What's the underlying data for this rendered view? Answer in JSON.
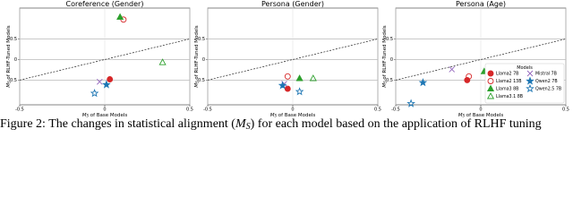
{
  "chart_data": [
    {
      "type": "scatter",
      "title": "Coreference (Gender)",
      "xlabel": {
        "symbol": "M",
        "subscript": "S",
        "text": " of Base Models"
      },
      "ylabel": {
        "symbol": "M",
        "subscript": "S",
        "text": " of RLHF-Tuned Models"
      },
      "xlim": [
        -0.5,
        0.5
      ],
      "ylim": [
        -1.1,
        1.25
      ],
      "xticks": [
        -0.5,
        0.0,
        0.5
      ],
      "yticks": [
        -0.5,
        0.0,
        0.5
      ],
      "grid": true,
      "series": [
        {
          "color": "#d62728",
          "marker": "circle",
          "filled": true,
          "x": [
            0.03
          ],
          "values": [
            -0.48
          ]
        },
        {
          "color": "#d62728",
          "marker": "circle",
          "filled": false,
          "x": [
            0.11
          ],
          "values": [
            0.97
          ]
        },
        {
          "color": "#2ca02c",
          "marker": "triangle",
          "filled": true,
          "x": [
            0.09
          ],
          "values": [
            1.03
          ]
        },
        {
          "color": "#2ca02c",
          "marker": "triangle",
          "filled": false,
          "x": [
            0.34
          ],
          "values": [
            -0.07
          ]
        },
        {
          "color": "#9467bd",
          "marker": "x",
          "filled": true,
          "x": [
            -0.03
          ],
          "values": [
            -0.54
          ]
        },
        {
          "color": "#1f77b4",
          "marker": "star",
          "filled": true,
          "x": [
            0.01
          ],
          "values": [
            -0.61
          ]
        },
        {
          "color": "#1f77b4",
          "marker": "star",
          "filled": false,
          "x": [
            -0.06
          ],
          "values": [
            -0.82
          ]
        }
      ]
    },
    {
      "type": "scatter",
      "title": "Persona (Gender)",
      "xlabel": {
        "symbol": "M",
        "subscript": "S",
        "text": " of Base Models"
      },
      "ylabel": {
        "symbol": "M",
        "subscript": "S",
        "text": " of RLHF-Tuned Models"
      },
      "xlim": [
        -0.5,
        0.5
      ],
      "ylim": [
        -1.1,
        1.25
      ],
      "xticks": [
        -0.5,
        0.0,
        0.5
      ],
      "yticks": [
        -0.5,
        0.0,
        0.5
      ],
      "grid": true,
      "series": [
        {
          "color": "#d62728",
          "marker": "circle",
          "filled": true,
          "x": [
            -0.03
          ],
          "values": [
            -0.71
          ]
        },
        {
          "color": "#d62728",
          "marker": "circle",
          "filled": false,
          "x": [
            -0.03
          ],
          "values": [
            -0.41
          ]
        },
        {
          "color": "#2ca02c",
          "marker": "triangle",
          "filled": true,
          "x": [
            0.04
          ],
          "values": [
            -0.46
          ]
        },
        {
          "color": "#2ca02c",
          "marker": "triangle",
          "filled": false,
          "x": [
            0.12
          ],
          "values": [
            -0.46
          ]
        },
        {
          "color": "#9467bd",
          "marker": "x",
          "filled": true,
          "x": [
            -0.05
          ],
          "values": [
            -0.59
          ]
        },
        {
          "color": "#1f77b4",
          "marker": "star",
          "filled": true,
          "x": [
            -0.06
          ],
          "values": [
            -0.63
          ]
        },
        {
          "color": "#1f77b4",
          "marker": "star",
          "filled": false,
          "x": [
            0.04
          ],
          "values": [
            -0.78
          ]
        }
      ]
    },
    {
      "type": "scatter",
      "title": "Persona (Age)",
      "xlabel": {
        "symbol": "M",
        "subscript": "S",
        "text": " of Base Models"
      },
      "ylabel": {
        "symbol": "M",
        "subscript": "S",
        "text": " of RLHF-Tuned Models"
      },
      "xlim": [
        -0.5,
        0.5
      ],
      "ylim": [
        -1.1,
        1.25
      ],
      "xticks": [
        -0.5,
        0.0,
        0.5
      ],
      "yticks": [
        -0.5,
        0.0,
        0.5
      ],
      "grid": true,
      "legend": "lower right",
      "legend_title": "Models",
      "series": [
        {
          "name": "Llama2 7B",
          "color": "#d62728",
          "marker": "circle",
          "filled": true,
          "x": [
            -0.08
          ],
          "values": [
            -0.5
          ]
        },
        {
          "name": "Llama2 13B",
          "color": "#d62728",
          "marker": "circle",
          "filled": false,
          "x": [
            -0.07
          ],
          "values": [
            -0.41
          ]
        },
        {
          "name": "Llama3 8B",
          "color": "#2ca02c",
          "marker": "triangle",
          "filled": true,
          "x": [
            0.02
          ],
          "values": [
            -0.29
          ]
        },
        {
          "name": "Llama3.1 8B",
          "color": "#2ca02c",
          "marker": "triangle",
          "filled": false,
          "x": [
            0.1
          ],
          "values": [
            -0.29
          ]
        },
        {
          "name": "Mistral 7B",
          "color": "#9467bd",
          "marker": "x",
          "filled": true,
          "x": [
            -0.17
          ],
          "values": [
            -0.24
          ]
        },
        {
          "name": "Qwen2 7B",
          "color": "#1f77b4",
          "marker": "star",
          "filled": true,
          "x": [
            -0.34
          ],
          "values": [
            -0.56
          ]
        },
        {
          "name": "Qwen2.5 7B",
          "color": "#1f77b4",
          "marker": "star",
          "filled": false,
          "x": [
            -0.41
          ],
          "values": [
            -1.07
          ]
        }
      ]
    }
  ],
  "caption": {
    "before": "Figure 2: The changes in statistical alignment (",
    "symbol": "M",
    "subscript": "S",
    "after": ") for each model based on the application of RLHF tuning"
  }
}
